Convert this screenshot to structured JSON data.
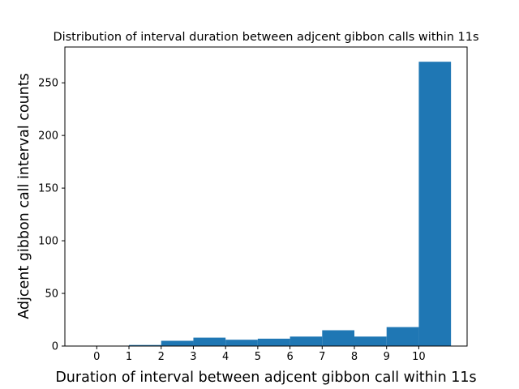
{
  "chart_data": {
    "type": "bar",
    "title": "Distribution of interval duration between adjcent gibbon calls within 11s",
    "xlabel": "Duration of interval between adjcent gibbon call within 11s",
    "ylabel": "Adjcent gibbon call interval counts",
    "bin_edges": [
      0,
      1,
      2,
      3,
      4,
      5,
      6,
      7,
      8,
      9,
      10,
      11
    ],
    "values": [
      0,
      1,
      5,
      8,
      6,
      7,
      9,
      15,
      9,
      18,
      270
    ],
    "xlim": [
      -0.99,
      11.5
    ],
    "ylim": [
      0,
      284
    ],
    "xticks": [
      0,
      1,
      2,
      3,
      4,
      5,
      6,
      7,
      8,
      9,
      10
    ],
    "xtick_labels": [
      "0",
      "1",
      "2",
      "3",
      "4",
      "5",
      "6",
      "7",
      "8",
      "9",
      "10"
    ],
    "yticks": [
      0,
      50,
      100,
      150,
      200,
      250
    ],
    "ytick_labels": [
      "0",
      "50",
      "100",
      "150",
      "200",
      "250"
    ],
    "bar_color": "#1f77b4",
    "grid": false,
    "legend": "none"
  }
}
